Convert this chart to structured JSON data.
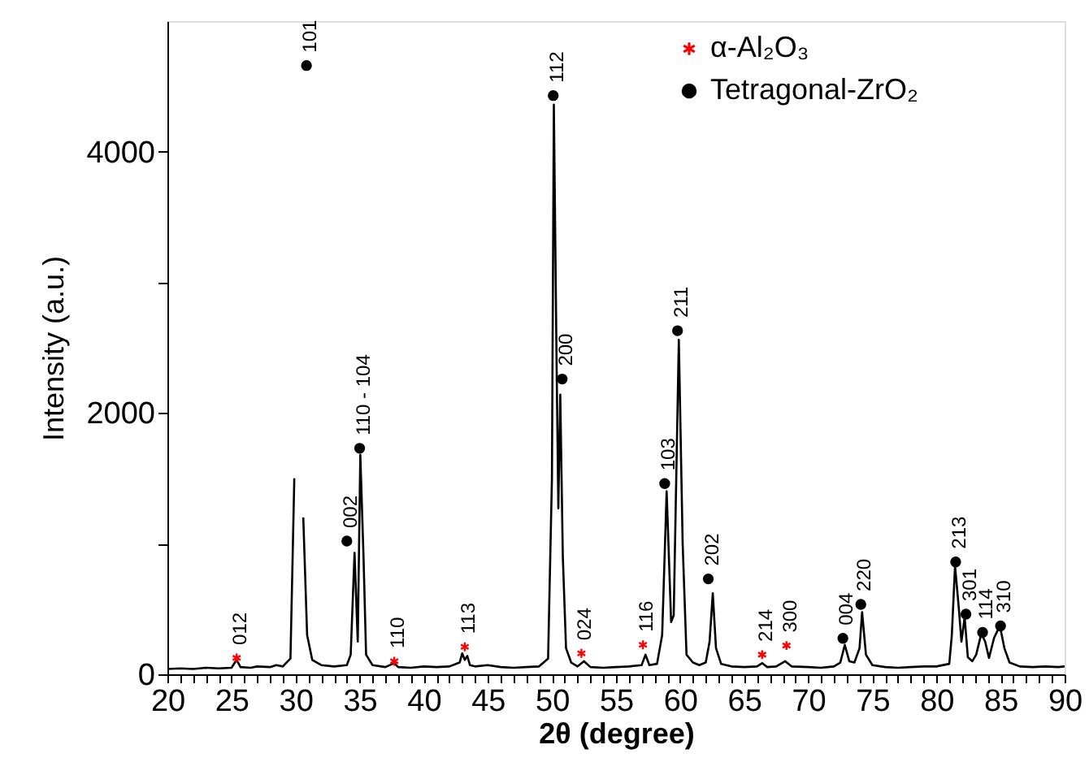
{
  "chart_data": {
    "type": "line",
    "xlabel": "2θ (degree)",
    "ylabel": "Intensity (a.u.)",
    "xlim": [
      20,
      90
    ],
    "xticks": [
      20,
      {
        "value": 21,
        "label": null
      },
      {
        "value": 22,
        "label": null
      },
      {
        "value": 23,
        "label": null
      },
      {
        "value": 24,
        "label": null
      },
      25,
      {
        "value": 26,
        "label": null
      },
      {
        "value": 27,
        "label": null
      },
      {
        "value": 28,
        "label": null
      },
      {
        "value": 29,
        "label": null
      },
      30,
      {
        "value": 31,
        "label": null
      },
      {
        "value": 32,
        "label": null
      },
      {
        "value": 33,
        "label": null
      },
      {
        "value": 34,
        "label": null
      },
      35,
      {
        "value": 36,
        "label": null
      },
      {
        "value": 37,
        "label": null
      },
      {
        "value": 38,
        "label": null
      },
      {
        "value": 39,
        "label": null
      },
      40,
      {
        "value": 41,
        "label": null
      },
      {
        "value": 42,
        "label": null
      },
      {
        "value": 43,
        "label": null
      },
      {
        "value": 44,
        "label": null
      },
      45,
      {
        "value": 46,
        "label": null
      },
      {
        "value": 47,
        "label": null
      },
      {
        "value": 48,
        "label": null
      },
      {
        "value": 49,
        "label": null
      },
      50,
      {
        "value": 51,
        "label": null
      },
      {
        "value": 52,
        "label": null
      },
      {
        "value": 53,
        "label": null
      },
      {
        "value": 54,
        "label": null
      },
      55,
      {
        "value": 56,
        "label": null
      },
      {
        "value": 57,
        "label": null
      },
      {
        "value": 58,
        "label": null
      },
      {
        "value": 59,
        "label": null
      },
      60,
      {
        "value": 61,
        "label": null
      },
      {
        "value": 62,
        "label": null
      },
      {
        "value": 63,
        "label": null
      },
      {
        "value": 64,
        "label": null
      },
      65,
      {
        "value": 66,
        "label": null
      },
      {
        "value": 67,
        "label": null
      },
      {
        "value": 68,
        "label": null
      },
      {
        "value": 69,
        "label": null
      },
      70,
      {
        "value": 71,
        "label": null
      },
      {
        "value": 72,
        "label": null
      },
      {
        "value": 73,
        "label": null
      },
      {
        "value": 74,
        "label": null
      },
      75,
      {
        "value": 76,
        "label": null
      },
      {
        "value": 77,
        "label": null
      },
      {
        "value": 78,
        "label": null
      },
      {
        "value": 79,
        "label": null
      },
      80,
      {
        "value": 81,
        "label": null
      },
      {
        "value": 82,
        "label": null
      },
      {
        "value": 83,
        "label": null
      },
      {
        "value": 84,
        "label": null
      },
      85,
      {
        "value": 86,
        "label": null
      },
      {
        "value": 87,
        "label": null
      },
      {
        "value": 88,
        "label": null
      },
      {
        "value": 89,
        "label": null
      },
      90
    ],
    "ylim": [
      0,
      5000
    ],
    "yticks": [
      0,
      {
        "value": 1000,
        "label": null
      },
      {
        "value": 2000,
        "label": "2000"
      },
      {
        "value": 3000,
        "label": null
      },
      {
        "value": 4000,
        "label": "4000"
      }
    ],
    "legend": "top right",
    "series": [
      {
        "color": "#000000",
        "line_style": "solid",
        "x": [
          20,
          21,
          22,
          23,
          24,
          25,
          25.4,
          25.7,
          26.5,
          27,
          28,
          28.5,
          29,
          29.6,
          29.9,
          30.05,
          30.4,
          30.6,
          30.9,
          31.3,
          32,
          33,
          34,
          34.3,
          34.6,
          34.85,
          35.05,
          35.3,
          35.5,
          36,
          37,
          37.7,
          38,
          39,
          40,
          41,
          42,
          42.8,
          43.0,
          43.2,
          43.4,
          43.6,
          44,
          45,
          46,
          47,
          48,
          49,
          49.7,
          50.0,
          50.15,
          50.35,
          50.5,
          50.65,
          50.85,
          51.1,
          51.5,
          52,
          52.5,
          53,
          54,
          55,
          56,
          57,
          57.3,
          57.6,
          58.2,
          58.6,
          58.95,
          59.3,
          59.5,
          59.9,
          60.2,
          60.5,
          61,
          61.5,
          62,
          62.3,
          62.55,
          62.8,
          63.2,
          64,
          65,
          66,
          66.4,
          66.8,
          67.5,
          68.2,
          68.7,
          70,
          71,
          72,
          72.5,
          72.85,
          73.2,
          73.6,
          74.0,
          74.2,
          74.5,
          75,
          76,
          77,
          78,
          79,
          80,
          81,
          81.2,
          81.45,
          81.75,
          81.95,
          82.2,
          82.45,
          82.8,
          83.1,
          83.5,
          83.8,
          84.1,
          84.5,
          84.75,
          84.95,
          85.3,
          85.7,
          86.5,
          87.5,
          88.5,
          89.5,
          90
        ],
        "values": [
          40,
          45,
          40,
          50,
          45,
          50,
          110,
          55,
          50,
          60,
          55,
          70,
          60,
          120,
          1500,
          null,
          null,
          1200,
          300,
          110,
          70,
          60,
          70,
          150,
          930,
          250,
          1680,
          900,
          150,
          70,
          55,
          85,
          55,
          50,
          60,
          55,
          60,
          90,
          160,
          110,
          140,
          70,
          60,
          70,
          55,
          50,
          55,
          60,
          120,
          1500,
          4360,
          2500,
          1270,
          2140,
          900,
          200,
          90,
          60,
          100,
          55,
          50,
          55,
          60,
          70,
          150,
          70,
          80,
          300,
          1400,
          400,
          450,
          2560,
          1000,
          150,
          90,
          70,
          90,
          250,
          620,
          200,
          80,
          60,
          55,
          60,
          85,
          55,
          60,
          100,
          60,
          55,
          50,
          60,
          90,
          225,
          100,
          90,
          200,
          475,
          150,
          70,
          55,
          50,
          55,
          60,
          60,
          80,
          300,
          830,
          500,
          250,
          435,
          130,
          100,
          150,
          310,
          250,
          125,
          280,
          330,
          370,
          200,
          90,
          60,
          55,
          60,
          55,
          60
        ]
      },
      {
        "type": "scatter",
        "name": "α-Al₂O₃",
        "color": "#ff0000",
        "marker": "cross",
        "x": [
          25.4,
          37.7,
          43.2,
          52.3,
          57.1,
          66.4,
          68.3
        ],
        "values": [
          125,
          100,
          210,
          160,
          225,
          150,
          220
        ]
      },
      {
        "type": "scatter",
        "name": "Tetragonal-ZrO₂",
        "color": "#000000",
        "marker": "circle",
        "x": [
          30.85,
          34.0,
          35.0,
          50.1,
          50.8,
          58.8,
          59.8,
          62.2,
          72.7,
          74.1,
          81.5,
          82.3,
          83.6,
          85.0
        ],
        "values": [
          4660,
          1020,
          1730,
          4430,
          2260,
          1460,
          2630,
          730,
          275,
          535,
          860,
          460,
          320,
          370
        ]
      }
    ],
    "annotations": [
      {
        "text": "012",
        "x": 25.4,
        "y": 125
      },
      {
        "text": "101",
        "x": 30.85,
        "y": 4660
      },
      {
        "text": "002",
        "x": 34.0,
        "y": 1020
      },
      {
        "text": "110 - 104",
        "x": 35.0,
        "y": 1730
      },
      {
        "text": "110",
        "x": 37.7,
        "y": 100
      },
      {
        "text": "113",
        "x": 43.2,
        "y": 210
      },
      {
        "text": "112",
        "x": 50.1,
        "y": 4430
      },
      {
        "text": "200",
        "x": 50.8,
        "y": 2260
      },
      {
        "text": "024",
        "x": 52.3,
        "y": 160
      },
      {
        "text": "116",
        "x": 57.1,
        "y": 225
      },
      {
        "text": "103",
        "x": 58.8,
        "y": 1460
      },
      {
        "text": "211",
        "x": 59.8,
        "y": 2630
      },
      {
        "text": "202",
        "x": 62.2,
        "y": 730
      },
      {
        "text": "214",
        "x": 66.4,
        "y": 150
      },
      {
        "text": "300",
        "x": 68.3,
        "y": 220
      },
      {
        "text": "004",
        "x": 72.7,
        "y": 275
      },
      {
        "text": "220",
        "x": 74.1,
        "y": 535
      },
      {
        "text": "213",
        "x": 81.5,
        "y": 860
      },
      {
        "text": "301",
        "x": 82.3,
        "y": 460
      },
      {
        "text": "114",
        "x": 83.6,
        "y": 320
      },
      {
        "text": "310",
        "x": 85.0,
        "y": 370
      }
    ]
  }
}
